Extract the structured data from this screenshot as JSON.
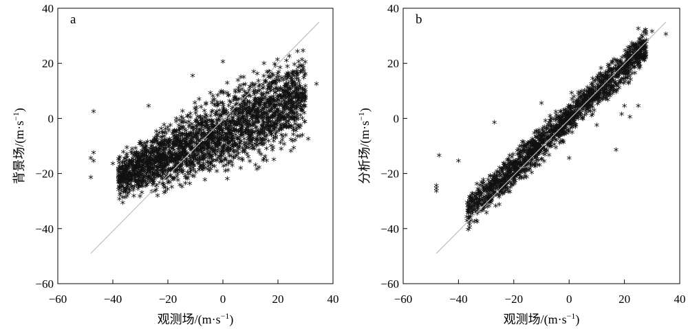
{
  "chart_data": [
    {
      "type": "scatter",
      "panel_label": "a",
      "xlabel": "观测场/(m·s",
      "xlabel_sup": "−1",
      "xlabel_close": ")",
      "ylabel": "背景场/(m·s",
      "ylabel_sup": "−1",
      "ylabel_close": ")",
      "xlim": [
        -60,
        40
      ],
      "ylim": [
        -60,
        40
      ],
      "xticks": [
        -60,
        -40,
        -20,
        0,
        20,
        40
      ],
      "yticks": [
        -60,
        -40,
        -20,
        0,
        20,
        40
      ],
      "xtick_labels": [
        "−60",
        "−40",
        "−20",
        "0",
        "20",
        "40"
      ],
      "ytick_labels": [
        "−60",
        "−40",
        "−20",
        "0",
        "20",
        "40"
      ],
      "reference_line": {
        "x": [
          -48,
          35
        ],
        "y": [
          -49,
          35
        ],
        "color": "#bdbdbd"
      },
      "marker": "*",
      "grid": false,
      "cluster": {
        "x_range": [
          -38,
          30
        ],
        "y_center_at_xmin": -22,
        "y_center_at_xmax": 8,
        "y_spread": 12
      },
      "points": [
        {
          "x": -48,
          "y": -22
        },
        {
          "x": -48,
          "y": -15
        },
        {
          "x": -47,
          "y": -13
        },
        {
          "x": -47,
          "y": 2
        },
        {
          "x": -47,
          "y": -16
        },
        {
          "x": -40,
          "y": -17
        },
        {
          "x": -27,
          "y": 4
        },
        {
          "x": -11,
          "y": 15
        },
        {
          "x": 34,
          "y": 12
        },
        {
          "x": 31,
          "y": -8
        },
        {
          "x": 26,
          "y": 19
        },
        {
          "x": 0,
          "y": 20
        },
        {
          "x": -36,
          "y": -26
        },
        {
          "x": -20,
          "y": -24
        },
        {
          "x": 5,
          "y": -14
        },
        {
          "x": 18,
          "y": -12
        },
        {
          "x": 28,
          "y": 3
        },
        {
          "x": -30,
          "y": -9
        }
      ]
    },
    {
      "type": "scatter",
      "panel_label": "b",
      "xlabel": "观测场/(m·s",
      "xlabel_sup": "−1",
      "xlabel_close": ")",
      "ylabel": "分析场/(m·s",
      "ylabel_sup": "−1",
      "ylabel_close": ")",
      "xlim": [
        -60,
        40
      ],
      "ylim": [
        -60,
        40
      ],
      "xticks": [
        -60,
        -40,
        -20,
        0,
        20,
        40
      ],
      "yticks": [
        -60,
        -40,
        -20,
        0,
        20,
        40
      ],
      "xtick_labels": [
        "−60",
        "−40",
        "−20",
        "0",
        "20",
        "40"
      ],
      "ytick_labels": [
        "−60",
        "−40",
        "−20",
        "0",
        "20",
        "40"
      ],
      "reference_line": {
        "x": [
          -48,
          35
        ],
        "y": [
          -49,
          35
        ],
        "color": "#bdbdbd"
      },
      "marker": "*",
      "grid": false,
      "cluster": {
        "x_range": [
          -37,
          28
        ],
        "y_center_at_xmin": -35,
        "y_center_at_xmax": 26,
        "y_spread": 5
      },
      "points": [
        {
          "x": -48,
          "y": -25
        },
        {
          "x": -48,
          "y": -26
        },
        {
          "x": -48,
          "y": -27
        },
        {
          "x": -47,
          "y": -14
        },
        {
          "x": -40,
          "y": -16
        },
        {
          "x": -27,
          "y": -2
        },
        {
          "x": -10,
          "y": 5
        },
        {
          "x": 17,
          "y": -12
        },
        {
          "x": 25,
          "y": 32
        },
        {
          "x": 30,
          "y": 31
        },
        {
          "x": 35,
          "y": 30
        },
        {
          "x": 20,
          "y": 4
        },
        {
          "x": 25,
          "y": 4
        },
        {
          "x": 22,
          "y": 0
        },
        {
          "x": 19,
          "y": 1
        },
        {
          "x": 0,
          "y": -15
        },
        {
          "x": -34,
          "y": -30
        },
        {
          "x": 10,
          "y": -3
        }
      ]
    }
  ]
}
